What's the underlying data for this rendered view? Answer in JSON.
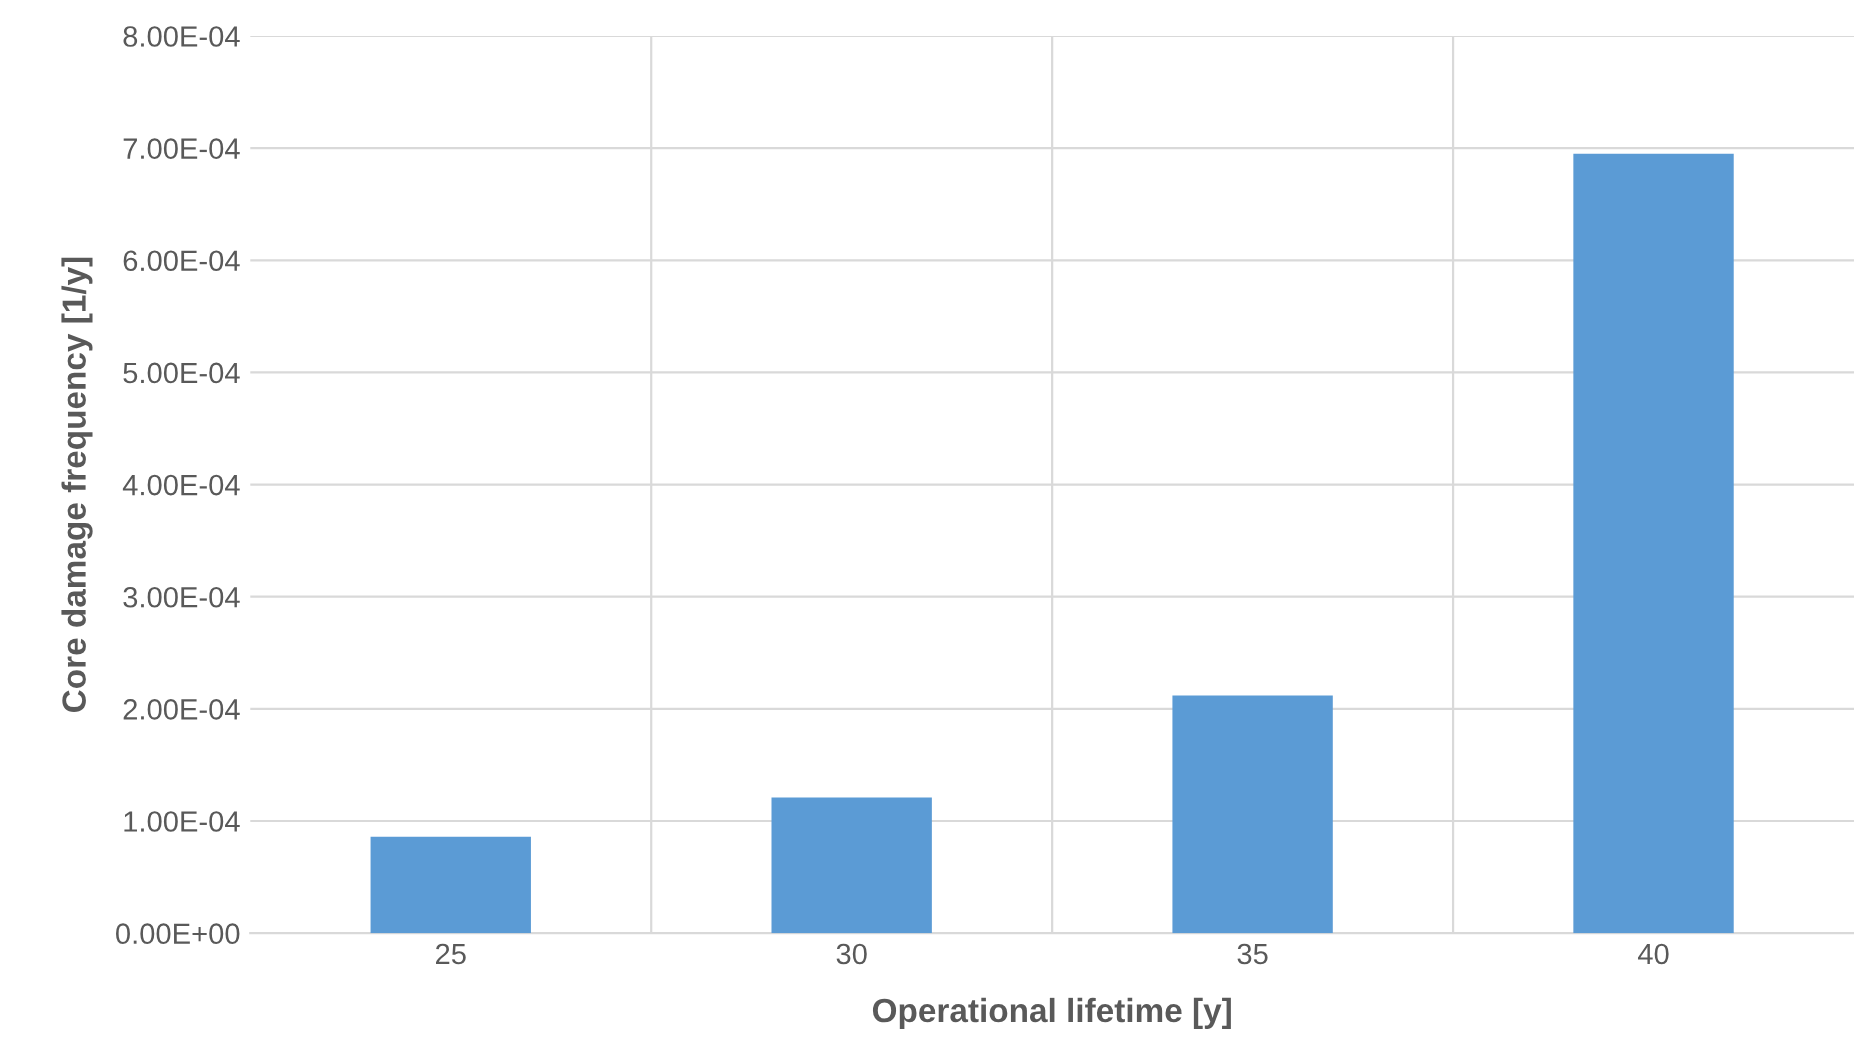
{
  "chart_data": {
    "type": "bar",
    "xlabel": "Operational lifetime [y]",
    "ylabel": "Core damage frequency [1/y]",
    "categories": [
      "25",
      "30",
      "35",
      "40"
    ],
    "values": [
      8.6e-05,
      0.000121,
      0.000212,
      0.000695
    ],
    "color": "#5b9bd5",
    "ylim": [
      0,
      0.0008
    ],
    "yticks": [
      {
        "value": 0,
        "label": "0.00E+00"
      },
      {
        "value": 0.0001,
        "label": "1.00E-04"
      },
      {
        "value": 0.0002,
        "label": "2.00E-04"
      },
      {
        "value": 0.0003,
        "label": "3.00E-04"
      },
      {
        "value": 0.0004,
        "label": "4.00E-04"
      },
      {
        "value": 0.0005,
        "label": "5.00E-04"
      },
      {
        "value": 0.0006,
        "label": "6.00E-04"
      },
      {
        "value": 0.0007,
        "label": "7.00E-04"
      },
      {
        "value": 0.0008,
        "label": "8.00E-04"
      }
    ],
    "grid": true
  }
}
